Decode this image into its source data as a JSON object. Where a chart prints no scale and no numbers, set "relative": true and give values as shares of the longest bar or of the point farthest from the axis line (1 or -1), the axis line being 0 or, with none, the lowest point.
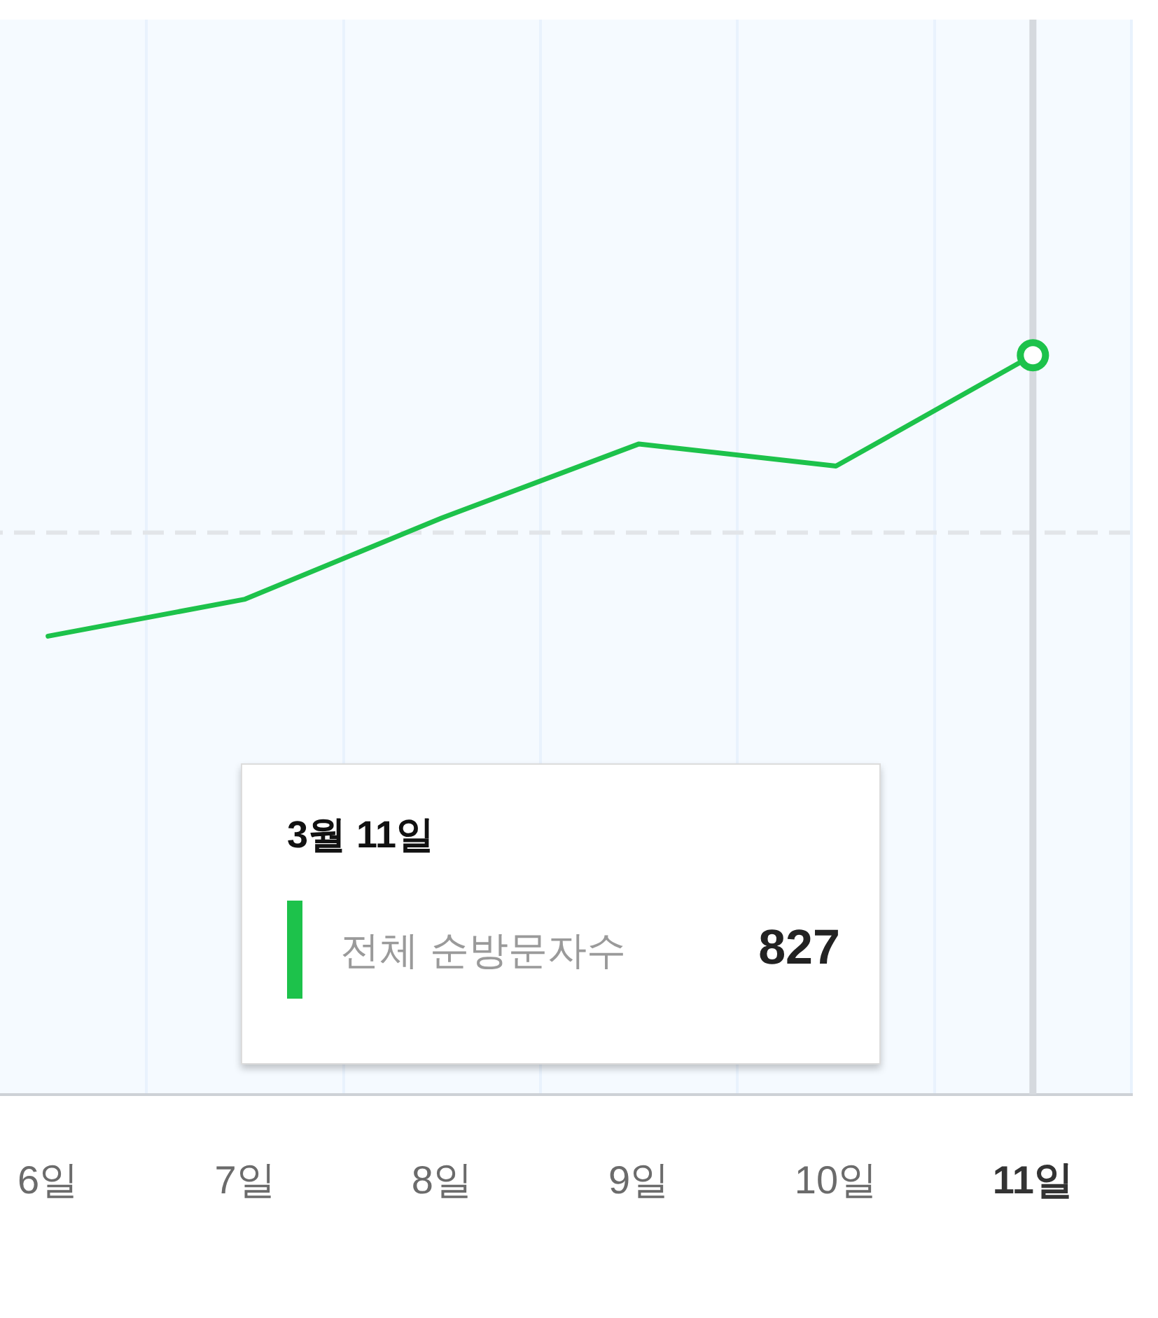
{
  "chart_data": {
    "type": "line",
    "categories": [
      "6일",
      "7일",
      "8일",
      "9일",
      "10일",
      "11일"
    ],
    "relative": true,
    "series": [
      {
        "name": "전체 순방문자수",
        "color": "#1dc24b",
        "values": [
          0.62,
          0.67,
          0.78,
          0.88,
          0.85,
          1
        ]
      }
    ],
    "annotations": [
      "3월 11일",
      "827"
    ],
    "ref_lines": [
      {
        "axis": "y",
        "value": 0.76,
        "color": "#e2e5e9",
        "line_style": "dashed"
      },
      {
        "axis": "x",
        "value": "11일",
        "color": "#d5d9de"
      }
    ],
    "grid": "x",
    "legend": false,
    "marker": "none",
    "line_style": "solid"
  }
}
